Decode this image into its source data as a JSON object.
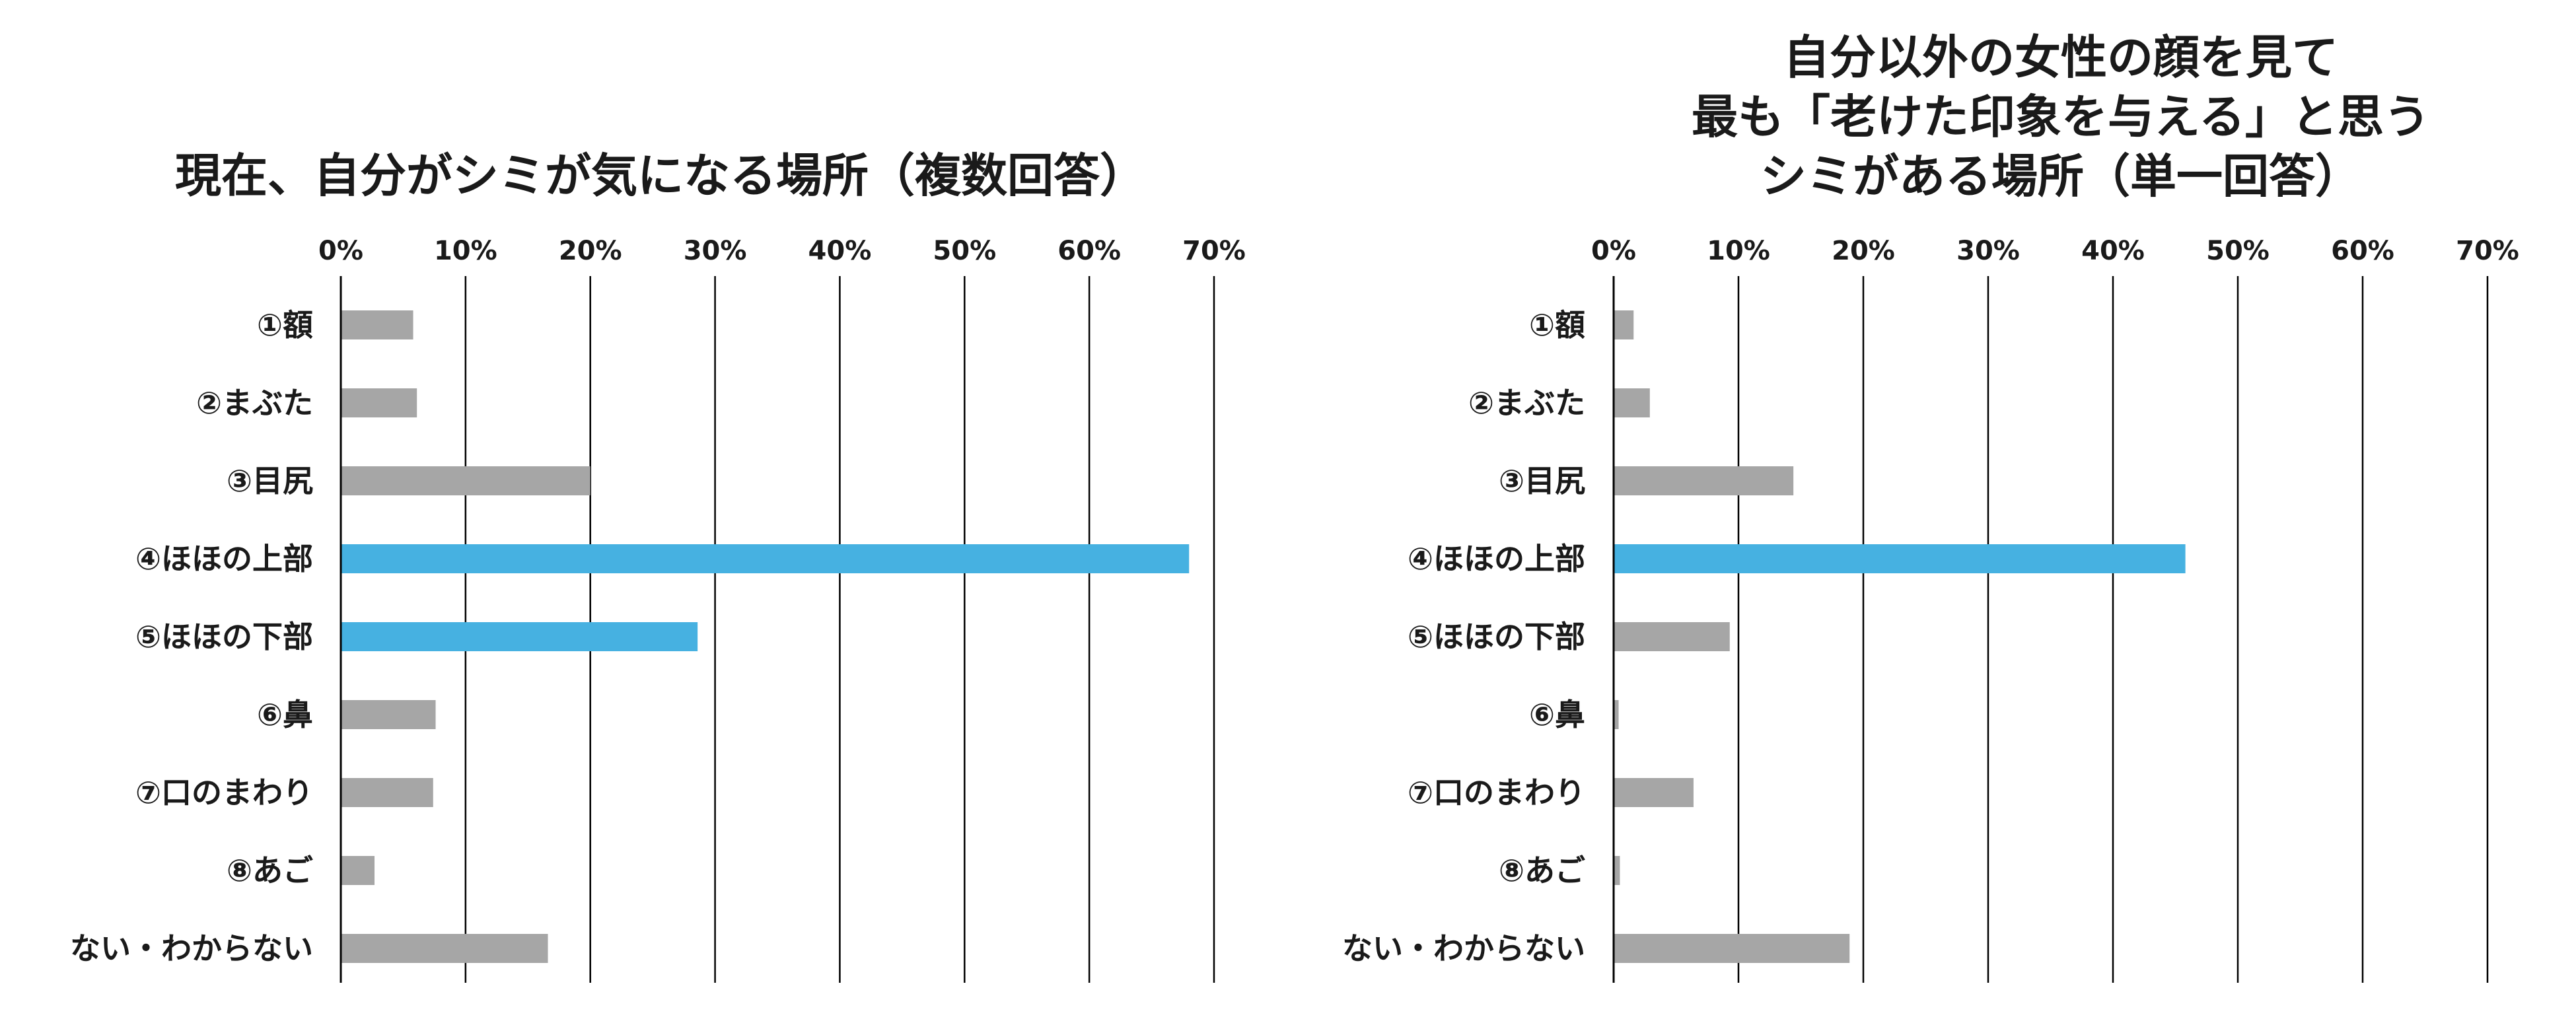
{
  "chart_data": [
    {
      "type": "bar",
      "orientation": "horizontal",
      "title_lines": [
        "現在、自分がシミが気になる場所（複数回答）"
      ],
      "categories": [
        "①額",
        "②まぶた",
        "③目尻",
        "④ほほの上部",
        "⑤ほほの下部",
        "⑥鼻",
        "⑦口のまわり",
        "⑧あご",
        "ない・わからない"
      ],
      "values": [
        5.8,
        6.1,
        20.0,
        68.0,
        28.6,
        7.6,
        7.4,
        2.7,
        16.6
      ],
      "highlight": [
        false,
        false,
        false,
        true,
        true,
        false,
        false,
        false,
        false
      ],
      "xlim": [
        0,
        70
      ],
      "xticks": [
        "0%",
        "10%",
        "20%",
        "30%",
        "40%",
        "50%",
        "60%",
        "70%"
      ],
      "grid": true,
      "bar_color": "#a6a6a6",
      "highlight_color": "#46b1e1"
    },
    {
      "type": "bar",
      "orientation": "horizontal",
      "title_lines": [
        "自分以外の女性の顔を見て",
        "最も「老けた印象を与える」と思う",
        "シミがある場所（単一回答）"
      ],
      "categories": [
        "①額",
        "②まぶた",
        "③目尻",
        "④ほほの上部",
        "⑤ほほの下部",
        "⑥鼻",
        "⑦口のまわり",
        "⑧あご",
        "ない・わからない"
      ],
      "values": [
        1.6,
        2.9,
        14.4,
        45.8,
        9.3,
        0.4,
        6.4,
        0.5,
        18.9
      ],
      "highlight": [
        false,
        false,
        false,
        true,
        false,
        false,
        false,
        false,
        false
      ],
      "xlim": [
        0,
        70
      ],
      "xticks": [
        "0%",
        "10%",
        "20%",
        "30%",
        "40%",
        "50%",
        "60%",
        "70%"
      ],
      "grid": true,
      "bar_color": "#a6a6a6",
      "highlight_color": "#46b1e1"
    }
  ]
}
